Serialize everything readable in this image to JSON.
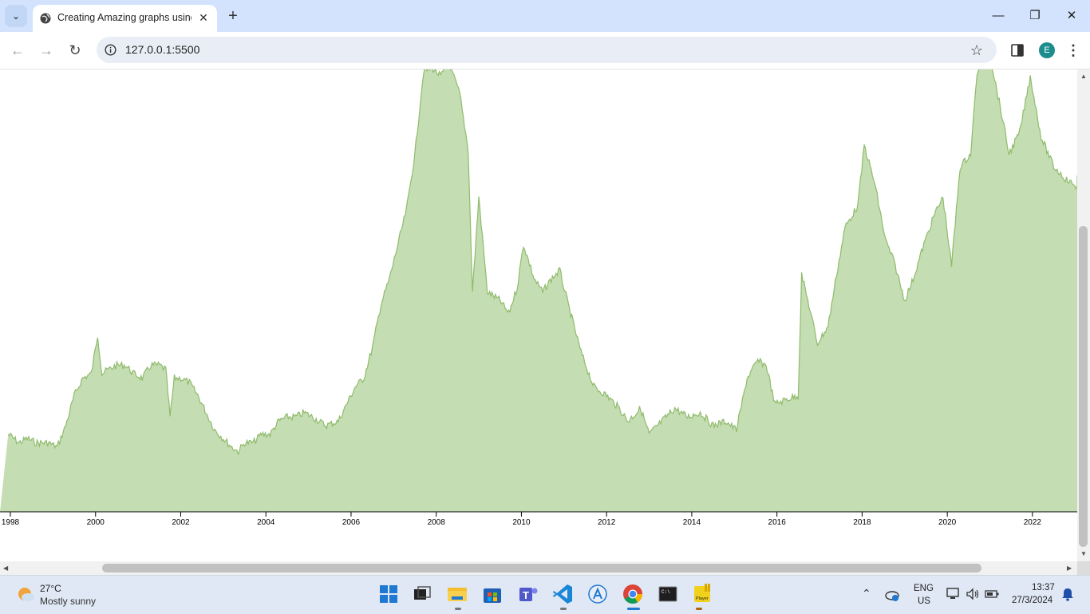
{
  "browser": {
    "tab_title": "Creating Amazing graphs using",
    "url": "127.0.0.1:5500",
    "avatar_letter": "E",
    "icons": [
      "tab-search-icon",
      "globe-icon",
      "close-icon",
      "plus-icon",
      "minimize-icon",
      "restore-icon",
      "close-window-icon",
      "back-icon",
      "forward-icon",
      "reload-icon",
      "info-icon",
      "star-icon",
      "side-panel-icon",
      "kebab-menu-icon"
    ]
  },
  "chart_data": {
    "type": "area",
    "title": "",
    "xlabel": "",
    "ylabel": "",
    "x_ticks": [
      "1998",
      "2000",
      "2002",
      "2004",
      "2006",
      "2008",
      "2010",
      "2012",
      "2014",
      "2016",
      "2018",
      "2020",
      "2022"
    ],
    "xlim": [
      1997.95,
      2023.3
    ],
    "fill_color": "#c5ddb2",
    "line_color": "#8fbb6c",
    "series": [
      {
        "points": [
          [
            1997.95,
            0.18
          ],
          [
            1998.2,
            0.16
          ],
          [
            1998.4,
            0.17
          ],
          [
            1998.6,
            0.16
          ],
          [
            1998.9,
            0.16
          ],
          [
            1999.1,
            0.15
          ],
          [
            1999.3,
            0.2
          ],
          [
            1999.5,
            0.27
          ],
          [
            1999.7,
            0.31
          ],
          [
            1999.9,
            0.32
          ],
          [
            2000.05,
            0.41
          ],
          [
            2000.15,
            0.32
          ],
          [
            2000.3,
            0.33
          ],
          [
            2000.5,
            0.34
          ],
          [
            2000.7,
            0.34
          ],
          [
            2000.9,
            0.32
          ],
          [
            2001.1,
            0.31
          ],
          [
            2001.3,
            0.34
          ],
          [
            2001.5,
            0.34
          ],
          [
            2001.65,
            0.33
          ],
          [
            2001.75,
            0.22
          ],
          [
            2001.85,
            0.31
          ],
          [
            2002.0,
            0.31
          ],
          [
            2002.2,
            0.3
          ],
          [
            2002.4,
            0.27
          ],
          [
            2002.6,
            0.23
          ],
          [
            2002.8,
            0.19
          ],
          [
            2003.0,
            0.17
          ],
          [
            2003.2,
            0.15
          ],
          [
            2003.35,
            0.14
          ],
          [
            2003.5,
            0.16
          ],
          [
            2003.7,
            0.16
          ],
          [
            2003.9,
            0.18
          ],
          [
            2004.1,
            0.18
          ],
          [
            2004.3,
            0.21
          ],
          [
            2004.5,
            0.22
          ],
          [
            2004.7,
            0.22
          ],
          [
            2004.9,
            0.23
          ],
          [
            2005.1,
            0.22
          ],
          [
            2005.4,
            0.2
          ],
          [
            2005.7,
            0.21
          ],
          [
            2005.9,
            0.25
          ],
          [
            2006.1,
            0.29
          ],
          [
            2006.3,
            0.31
          ],
          [
            2006.5,
            0.38
          ],
          [
            2006.7,
            0.48
          ],
          [
            2006.9,
            0.54
          ],
          [
            2007.1,
            0.62
          ],
          [
            2007.3,
            0.7
          ],
          [
            2007.5,
            0.83
          ],
          [
            2007.7,
            1.02
          ],
          [
            2007.9,
            1.03
          ],
          [
            2008.1,
            1.01
          ],
          [
            2008.3,
            1.04
          ],
          [
            2008.55,
            0.97
          ],
          [
            2008.75,
            0.84
          ],
          [
            2008.85,
            0.51
          ],
          [
            2009.0,
            0.73
          ],
          [
            2009.2,
            0.51
          ],
          [
            2009.5,
            0.49
          ],
          [
            2009.7,
            0.46
          ],
          [
            2009.9,
            0.52
          ],
          [
            2010.05,
            0.62
          ],
          [
            2010.3,
            0.54
          ],
          [
            2010.5,
            0.51
          ],
          [
            2010.7,
            0.54
          ],
          [
            2010.9,
            0.56
          ],
          [
            2011.1,
            0.48
          ],
          [
            2011.4,
            0.37
          ],
          [
            2011.7,
            0.29
          ],
          [
            2012.0,
            0.27
          ],
          [
            2012.3,
            0.24
          ],
          [
            2012.5,
            0.21
          ],
          [
            2012.8,
            0.24
          ],
          [
            2013.0,
            0.18
          ],
          [
            2013.3,
            0.21
          ],
          [
            2013.6,
            0.24
          ],
          [
            2013.9,
            0.22
          ],
          [
            2014.2,
            0.23
          ],
          [
            2014.5,
            0.2
          ],
          [
            2014.8,
            0.21
          ],
          [
            2015.05,
            0.19
          ],
          [
            2015.3,
            0.31
          ],
          [
            2015.55,
            0.35
          ],
          [
            2015.75,
            0.34
          ],
          [
            2015.95,
            0.25
          ],
          [
            2016.2,
            0.26
          ],
          [
            2016.5,
            0.27
          ],
          [
            2016.58,
            0.55
          ],
          [
            2016.75,
            0.48
          ],
          [
            2016.95,
            0.39
          ],
          [
            2017.2,
            0.43
          ],
          [
            2017.4,
            0.55
          ],
          [
            2017.6,
            0.66
          ],
          [
            2017.9,
            0.71
          ],
          [
            2018.05,
            0.85
          ],
          [
            2018.3,
            0.76
          ],
          [
            2018.55,
            0.63
          ],
          [
            2018.75,
            0.58
          ],
          [
            2019.0,
            0.49
          ],
          [
            2019.2,
            0.54
          ],
          [
            2019.45,
            0.62
          ],
          [
            2019.7,
            0.69
          ],
          [
            2019.9,
            0.73
          ],
          [
            2020.1,
            0.57
          ],
          [
            2020.3,
            0.8
          ],
          [
            2020.55,
            0.83
          ],
          [
            2020.7,
            1.02
          ],
          [
            2021.0,
            1.06
          ],
          [
            2021.3,
            0.91
          ],
          [
            2021.45,
            0.83
          ],
          [
            2021.7,
            0.88
          ],
          [
            2021.95,
            1.01
          ],
          [
            2022.2,
            0.87
          ],
          [
            2022.5,
            0.8
          ],
          [
            2022.8,
            0.77
          ],
          [
            2023.1,
            0.75
          ],
          [
            2023.3,
            0.78
          ]
        ]
      }
    ]
  },
  "taskbar": {
    "weather_temp": "27°C",
    "weather_desc": "Mostly sunny",
    "lang_line1": "ENG",
    "lang_line2": "US",
    "time": "13:37",
    "date": "27/3/2024",
    "apps": [
      "start-icon",
      "task-view-icon",
      "file-explorer-icon",
      "store-icon",
      "teams-icon",
      "vscode-icon",
      "app-store-icon",
      "chrome-icon",
      "terminal-icon",
      "player-icon"
    ]
  }
}
